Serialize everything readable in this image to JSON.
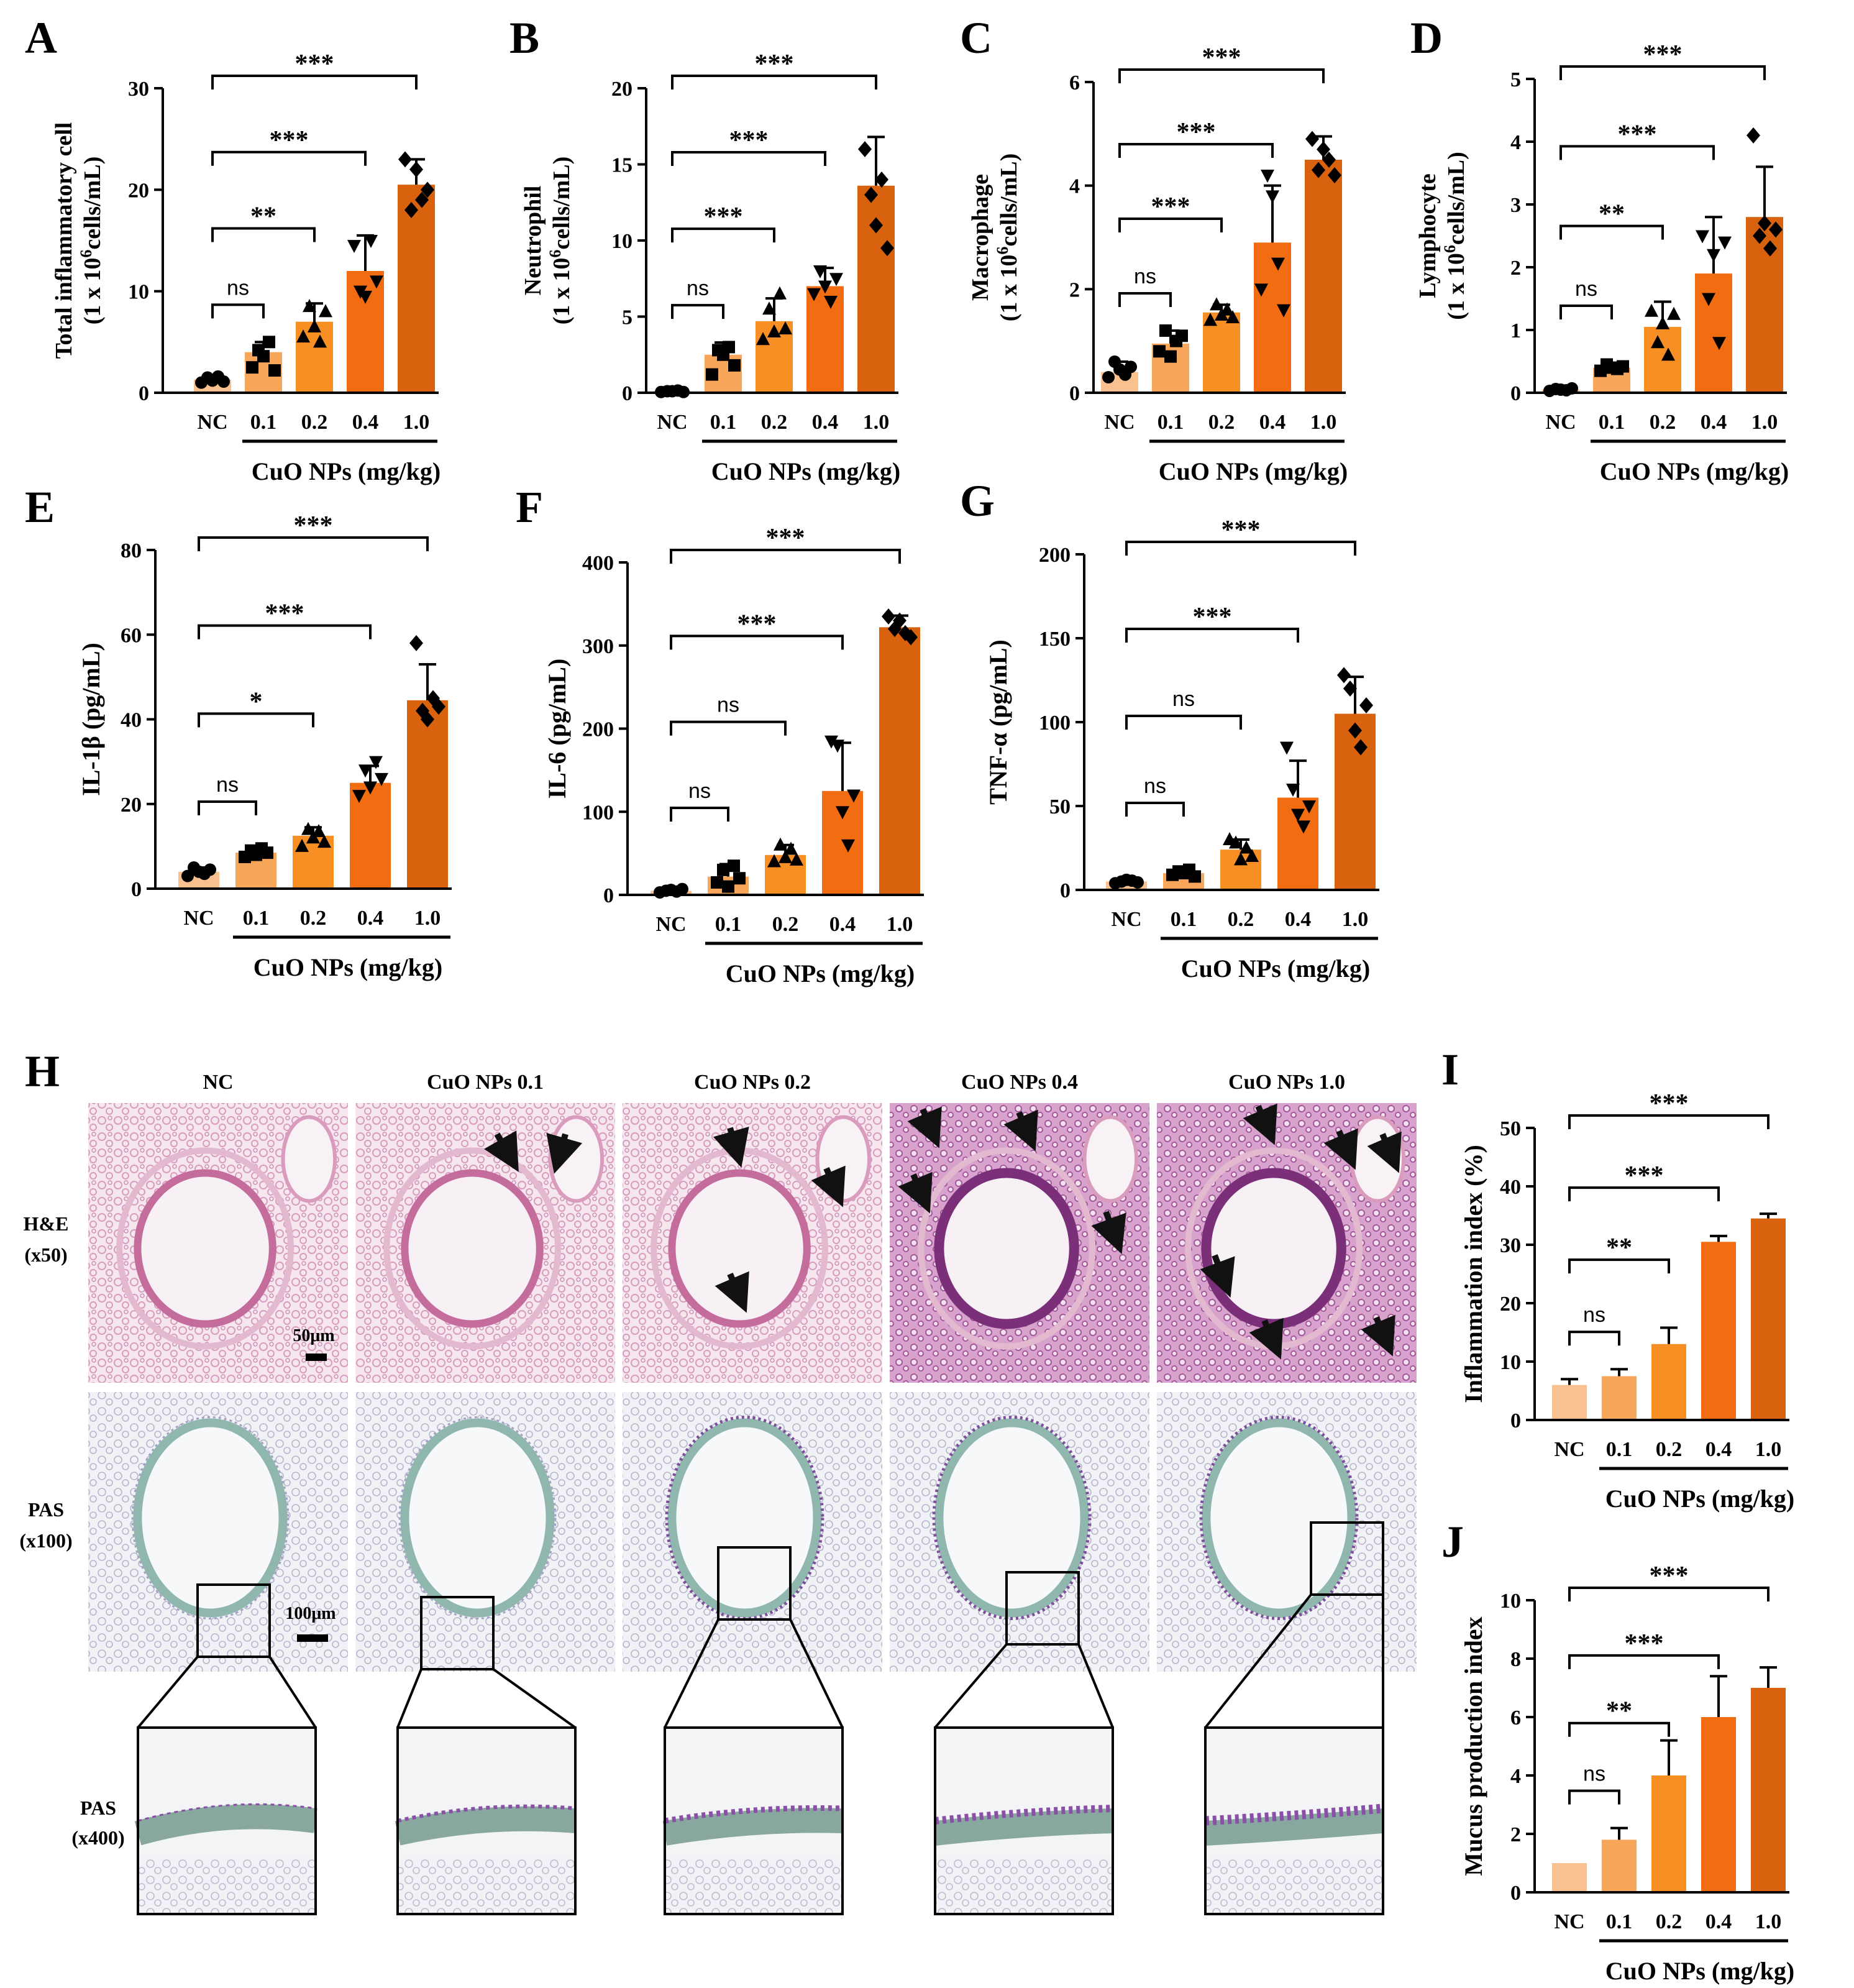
{
  "figure": {
    "x_group_label": "CuO NPs (mg/kg)",
    "histology": {
      "panel_letter": "H",
      "columns": [
        "NC",
        "CuO NPs 0.1",
        "CuO NPs 0.2",
        "CuO NPs 0.4",
        "CuO NPs 1.0"
      ],
      "rows": [
        {
          "line1": "H&E",
          "line2": "(x50)"
        },
        {
          "line1": "PAS",
          "line2": "(x100)"
        },
        {
          "line1": "PAS",
          "line2": "(x400)"
        }
      ],
      "scale_bar_he": "50μm",
      "scale_bar_pas": "100μm",
      "colors": {
        "he_tissue": "#e9b6cf",
        "he_dense": "#b86aa8",
        "pas_tissue": "#c9d8d4",
        "pas_bg": "#eef0f3",
        "arrow": "#111111"
      }
    },
    "colors": {
      "NC": "#f9c18f",
      "0.1": "#f8a75a",
      "0.2": "#f78f25",
      "0.4": "#f26d12",
      "1.0": "#d9620e"
    }
  },
  "chart_data": [
    {
      "type": "bar",
      "panel": "A",
      "ylabel1": "Total inflammatory cell",
      "ylabel2": "(1 x 10^6cells/mL)",
      "categories": [
        "NC",
        "0.1",
        "0.2",
        "0.4",
        "1.0"
      ],
      "xlabel": "CuO NPs (mg/kg)",
      "values": [
        1.3,
        4,
        7,
        12,
        20.5
      ],
      "errors": [
        0.3,
        1.0,
        1.8,
        3.5,
        2.5
      ],
      "ylim": [
        0,
        30
      ],
      "yticks": [
        0,
        10,
        20,
        30
      ],
      "markers": [
        "circle",
        "square",
        "triangle",
        "tri-down",
        "diamond"
      ],
      "points": [
        [
          1.0,
          1.5,
          1.2,
          1.6,
          1.1
        ],
        [
          2.5,
          4.2,
          3.6,
          5.0,
          2.2
        ],
        [
          5.5,
          8.5,
          6.5,
          5.0,
          8.0
        ],
        [
          14.5,
          10.0,
          9.5,
          15.0,
          11.0
        ],
        [
          23.0,
          18.0,
          22.0,
          19.0,
          20.0
        ]
      ],
      "comparisons": [
        {
          "group": "0.1",
          "label": "ns"
        },
        {
          "group": "0.2",
          "label": "**"
        },
        {
          "group": "0.4",
          "label": "***"
        },
        {
          "group": "1.0",
          "label": "***"
        }
      ]
    },
    {
      "type": "bar",
      "panel": "B",
      "ylabel1": "Neutrophil",
      "ylabel2": "(1 x 10^6cells/mL)",
      "categories": [
        "NC",
        "0.1",
        "0.2",
        "0.4",
        "1.0"
      ],
      "xlabel": "CuO NPs (mg/kg)",
      "values": [
        0.1,
        2.5,
        4.7,
        7.0,
        13.6
      ],
      "errors": [
        0.1,
        0.8,
        1.5,
        1.2,
        3.2
      ],
      "ylim": [
        0,
        20
      ],
      "yticks": [
        0,
        5,
        10,
        15,
        20
      ],
      "markers": [
        "circle",
        "square",
        "triangle",
        "tri-down",
        "diamond"
      ],
      "points": [
        [
          0.05,
          0.1,
          0.1,
          0.15,
          0.05
        ],
        [
          1.2,
          2.8,
          2.5,
          3.0,
          1.8
        ],
        [
          3.5,
          5.5,
          4.0,
          6.5,
          4.2
        ],
        [
          6.5,
          8.0,
          7.0,
          6.0,
          7.5
        ],
        [
          16.0,
          13.0,
          11.0,
          14.0,
          9.5
        ]
      ],
      "comparisons": [
        {
          "group": "0.1",
          "label": "ns"
        },
        {
          "group": "0.2",
          "label": "***"
        },
        {
          "group": "0.4",
          "label": "***"
        },
        {
          "group": "1.0",
          "label": "***"
        }
      ]
    },
    {
      "type": "bar",
      "panel": "C",
      "ylabel1": "Macrophage",
      "ylabel2": "(1 x 10^6cells/mL)",
      "categories": [
        "NC",
        "0.1",
        "0.2",
        "0.4",
        "1.0"
      ],
      "xlabel": "CuO NPs (mg/kg)",
      "values": [
        0.4,
        0.95,
        1.55,
        2.9,
        4.5
      ],
      "errors": [
        0.2,
        0.25,
        0.15,
        1.1,
        0.45
      ],
      "ylim": [
        0,
        6
      ],
      "yticks": [
        0,
        2,
        4,
        6
      ],
      "markers": [
        "circle",
        "square",
        "triangle",
        "tri-down",
        "diamond"
      ],
      "points": [
        [
          0.3,
          0.6,
          0.45,
          0.35,
          0.5
        ],
        [
          0.8,
          1.2,
          0.7,
          1.0,
          1.1
        ],
        [
          1.4,
          1.7,
          1.5,
          1.6,
          1.45
        ],
        [
          2.0,
          4.2,
          3.8,
          2.5,
          1.6
        ],
        [
          4.9,
          4.3,
          4.7,
          4.5,
          4.2
        ]
      ],
      "comparisons": [
        {
          "group": "0.1",
          "label": "ns"
        },
        {
          "group": "0.2",
          "label": "***"
        },
        {
          "group": "0.4",
          "label": "***"
        },
        {
          "group": "1.0",
          "label": "***"
        }
      ]
    },
    {
      "type": "bar",
      "panel": "D",
      "ylabel1": "Lymphocyte",
      "ylabel2": "(1 x 10^6cells/mL)",
      "categories": [
        "NC",
        "0.1",
        "0.2",
        "0.4",
        "1.0"
      ],
      "xlabel": "CuO NPs (mg/kg)",
      "values": [
        0.05,
        0.4,
        1.05,
        1.9,
        2.8
      ],
      "errors": [
        0.02,
        0.05,
        0.4,
        0.9,
        0.8
      ],
      "ylim": [
        0,
        5
      ],
      "yticks": [
        0,
        1,
        2,
        3,
        4,
        5
      ],
      "markers": [
        "circle",
        "square",
        "triangle",
        "tri-down",
        "diamond"
      ],
      "points": [
        [
          0.03,
          0.06,
          0.05,
          0.04,
          0.07
        ],
        [
          0.35,
          0.45,
          0.4,
          0.38,
          0.42
        ],
        [
          1.3,
          0.8,
          1.1,
          0.6,
          1.25
        ],
        [
          2.5,
          1.5,
          2.2,
          0.8,
          2.4
        ],
        [
          4.1,
          2.5,
          2.7,
          2.3,
          2.6
        ]
      ],
      "comparisons": [
        {
          "group": "0.1",
          "label": "ns"
        },
        {
          "group": "0.2",
          "label": "**"
        },
        {
          "group": "0.4",
          "label": "***"
        },
        {
          "group": "1.0",
          "label": "***"
        }
      ]
    },
    {
      "type": "bar",
      "panel": "E",
      "ylabel1": "IL-1β (pg/mL)",
      "ylabel2": "",
      "categories": [
        "NC",
        "0.1",
        "0.2",
        "0.4",
        "1.0"
      ],
      "xlabel": "CuO NPs (mg/kg)",
      "values": [
        4,
        8.5,
        12.5,
        25,
        44.5
      ],
      "errors": [
        1,
        1,
        2,
        4,
        8.5
      ],
      "ylim": [
        0,
        80
      ],
      "yticks": [
        0,
        20,
        40,
        60,
        80
      ],
      "markers": [
        "circle",
        "square",
        "triangle",
        "tri-down",
        "diamond"
      ],
      "points": [
        [
          3,
          5,
          4,
          3.5,
          4.5
        ],
        [
          7.5,
          9,
          8,
          9.5,
          8.5
        ],
        [
          10,
          14,
          12,
          13.5,
          11
        ],
        [
          22,
          28,
          24,
          30,
          26
        ],
        [
          58,
          42,
          40,
          45,
          43
        ]
      ],
      "comparisons": [
        {
          "group": "0.1",
          "label": "ns"
        },
        {
          "group": "0.2",
          "label": "*"
        },
        {
          "group": "0.4",
          "label": "***"
        },
        {
          "group": "1.0",
          "label": "***"
        }
      ]
    },
    {
      "type": "bar",
      "panel": "F",
      "ylabel1": "IL-6 (pg/mL)",
      "ylabel2": "",
      "categories": [
        "NC",
        "0.1",
        "0.2",
        "0.4",
        "1.0"
      ],
      "xlabel": "CuO NPs (mg/kg)",
      "values": [
        5,
        22,
        48,
        125,
        322
      ],
      "errors": [
        2,
        15,
        12,
        58,
        14
      ],
      "ylim": [
        0,
        400
      ],
      "yticks": [
        0,
        100,
        200,
        300,
        400
      ],
      "markers": [
        "circle",
        "square",
        "triangle",
        "tri-down",
        "diamond"
      ],
      "points": [
        [
          3,
          5,
          6,
          4,
          7
        ],
        [
          15,
          30,
          10,
          35,
          20
        ],
        [
          40,
          60,
          45,
          55,
          42
        ],
        [
          185,
          180,
          100,
          60,
          120
        ],
        [
          335,
          320,
          330,
          315,
          310
        ]
      ],
      "comparisons": [
        {
          "group": "0.1",
          "label": "ns"
        },
        {
          "group": "0.2",
          "label": "ns"
        },
        {
          "group": "0.4",
          "label": "***"
        },
        {
          "group": "1.0",
          "label": "***"
        }
      ]
    },
    {
      "type": "bar",
      "panel": "G",
      "ylabel1": "TNF-α (pg/mL)",
      "ylabel2": "",
      "categories": [
        "NC",
        "0.1",
        "0.2",
        "0.4",
        "1.0"
      ],
      "xlabel": "CuO NPs (mg/kg)",
      "values": [
        5,
        10,
        24,
        55,
        105
      ],
      "errors": [
        1,
        2,
        6,
        22,
        22
      ],
      "ylim": [
        0,
        200
      ],
      "yticks": [
        0,
        50,
        100,
        150,
        200
      ],
      "markers": [
        "circle",
        "square",
        "triangle",
        "tri-down",
        "diamond"
      ],
      "points": [
        [
          4,
          5,
          6,
          5.5,
          4.5
        ],
        [
          9,
          11,
          10,
          12,
          8
        ],
        [
          30,
          28,
          18,
          25,
          20
        ],
        [
          85,
          60,
          45,
          38,
          50
        ],
        [
          128,
          120,
          95,
          85,
          110
        ]
      ],
      "comparisons": [
        {
          "group": "0.1",
          "label": "ns"
        },
        {
          "group": "0.2",
          "label": "ns"
        },
        {
          "group": "0.4",
          "label": "***"
        },
        {
          "group": "1.0",
          "label": "***"
        }
      ]
    },
    {
      "type": "bar",
      "panel": "I",
      "ylabel1": "Inflammation index (%)",
      "ylabel2": "",
      "categories": [
        "NC",
        "0.1",
        "0.2",
        "0.4",
        "1.0"
      ],
      "xlabel": "CuO NPs (mg/kg)",
      "values": [
        6,
        7.5,
        13,
        30.5,
        34.5
      ],
      "errors": [
        1,
        1.2,
        2.8,
        1,
        0.8
      ],
      "ylim": [
        0,
        50
      ],
      "yticks": [
        0,
        10,
        20,
        30,
        40,
        50
      ],
      "markers": [],
      "points": [],
      "comparisons": [
        {
          "group": "0.1",
          "label": "ns"
        },
        {
          "group": "0.2",
          "label": "**"
        },
        {
          "group": "0.4",
          "label": "***"
        },
        {
          "group": "1.0",
          "label": "***"
        }
      ]
    },
    {
      "type": "bar",
      "panel": "J",
      "ylabel1": "Mucus production index",
      "ylabel2": "",
      "categories": [
        "NC",
        "0.1",
        "0.2",
        "0.4",
        "1.0"
      ],
      "xlabel": "CuO NPs (mg/kg)",
      "values": [
        1,
        1.8,
        4,
        6,
        7
      ],
      "errors": [
        0,
        0.4,
        1.2,
        1.4,
        0.7
      ],
      "ylim": [
        0,
        10
      ],
      "yticks": [
        0,
        2,
        4,
        6,
        8,
        10
      ],
      "markers": [],
      "points": [],
      "comparisons": [
        {
          "group": "0.1",
          "label": "ns"
        },
        {
          "group": "0.2",
          "label": "**"
        },
        {
          "group": "0.4",
          "label": "***"
        },
        {
          "group": "1.0",
          "label": "***"
        }
      ]
    }
  ]
}
